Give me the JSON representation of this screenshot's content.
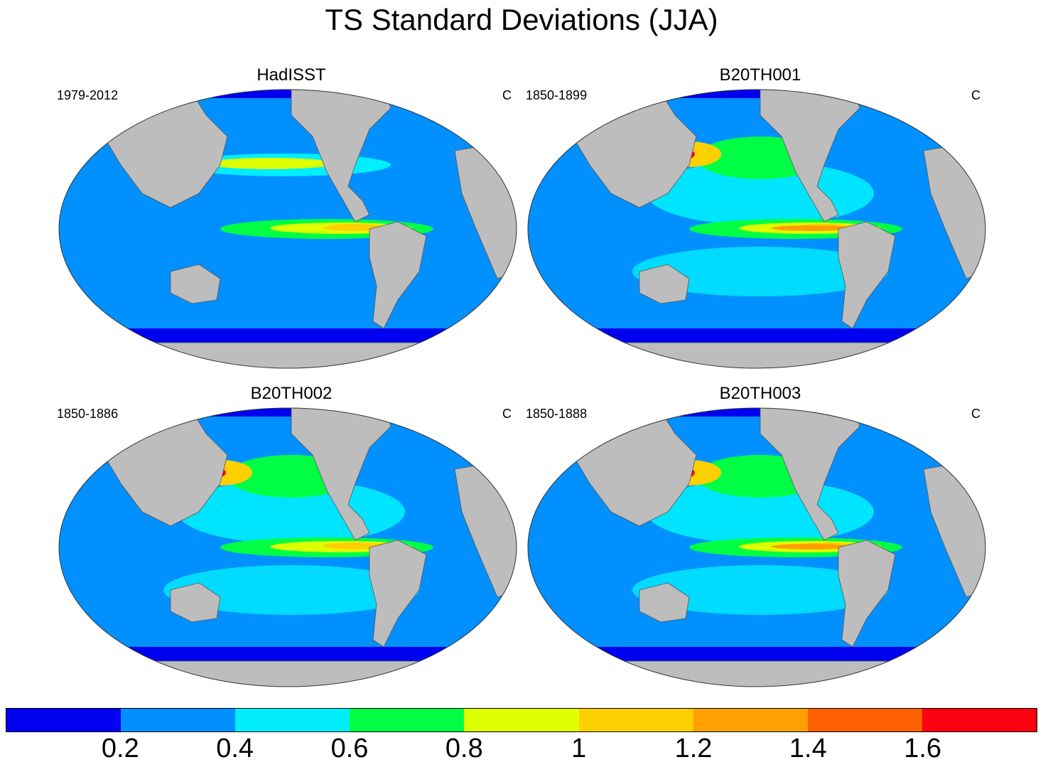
{
  "title": "TS Standard Deviations (JJA)",
  "panels": [
    {
      "title": "HadISST",
      "years": "1979-2012",
      "units": "C"
    },
    {
      "title": "B20TH001",
      "years": "1850-1899",
      "units": "C"
    },
    {
      "title": "B20TH002",
      "years": "1850-1886",
      "units": "C"
    },
    {
      "title": "B20TH003",
      "years": "1850-1888",
      "units": "C"
    }
  ],
  "colorbar": {
    "colors": [
      "#0000f0",
      "#0090ff",
      "#00eeff",
      "#00ff44",
      "#ddff00",
      "#ffd000",
      "#ffa000",
      "#ff6000",
      "#ff0010"
    ],
    "labels": [
      "0.2",
      "0.4",
      "0.6",
      "0.8",
      "1",
      "1.2",
      "1.4",
      "1.6"
    ]
  },
  "colors": {
    "land": "#bdbdbd",
    "background_ocean": "#0090ff"
  }
}
